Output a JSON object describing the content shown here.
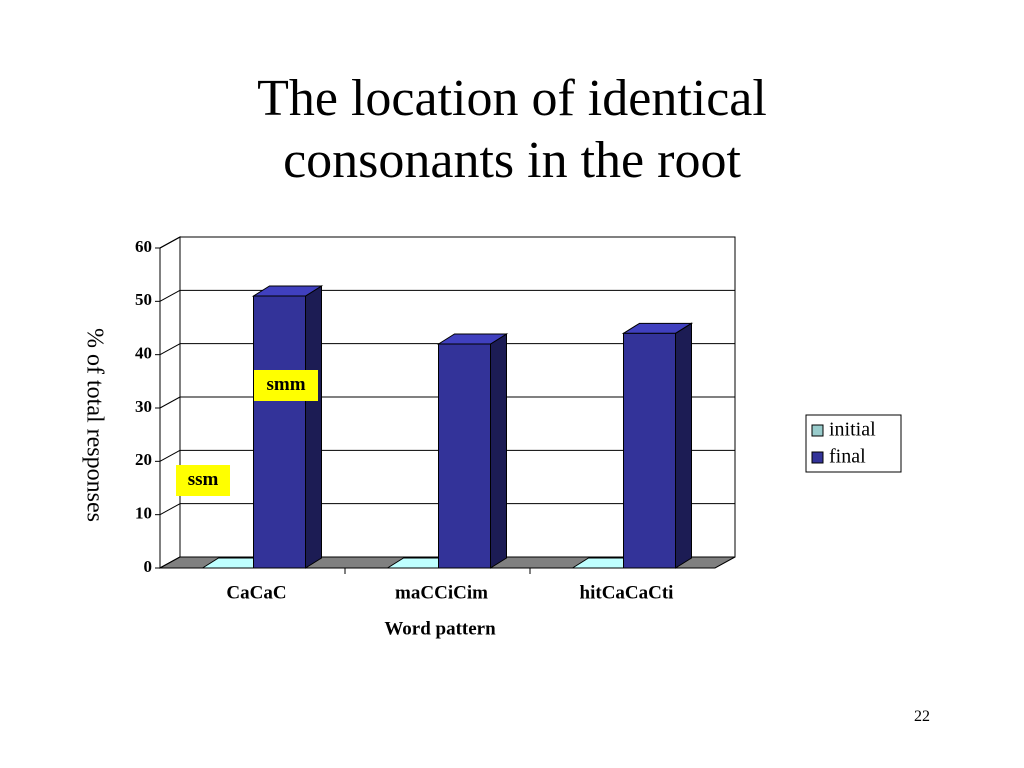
{
  "chart_data": {
    "type": "bar",
    "title": "The location of identical consonants in the root",
    "categories": [
      "CaCaC",
      "maCCiCim",
      "hitCaCaCti"
    ],
    "series": [
      {
        "name": "initial",
        "color": "#99cccc",
        "values": [
          0,
          0,
          0
        ]
      },
      {
        "name": "final",
        "color": "#333399",
        "values": [
          51,
          42,
          44
        ]
      }
    ],
    "ylim": [
      0,
      60
    ],
    "yticks": [
      0,
      10,
      20,
      30,
      40,
      50,
      60
    ],
    "grid": true,
    "xlabel": "Word pattern",
    "ylabel": "% of total responses",
    "legend": "right",
    "annotations": [
      "smm",
      "ssm"
    ]
  },
  "page_number": "22"
}
